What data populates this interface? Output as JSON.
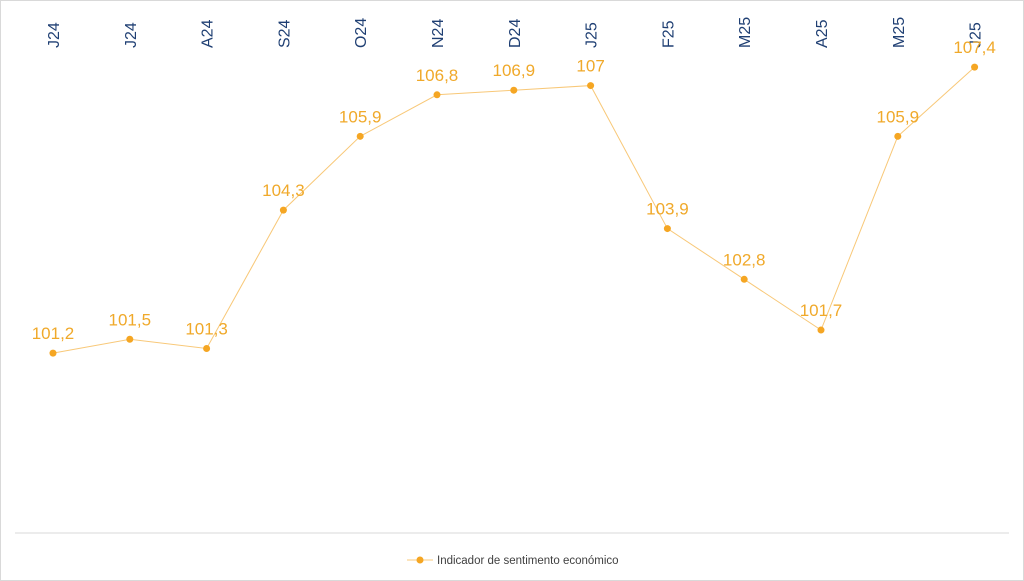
{
  "chart_data": {
    "type": "line",
    "categories": [
      "J24",
      "J24",
      "A24",
      "S24",
      "O24",
      "N24",
      "D24",
      "J25",
      "F25",
      "M25",
      "A25",
      "M25",
      "J25"
    ],
    "series": [
      {
        "name": "Indicador de sentimento económico",
        "values": [
          101.2,
          101.5,
          101.3,
          104.3,
          105.9,
          106.8,
          106.9,
          107,
          103.9,
          102.8,
          101.7,
          105.9,
          107.4
        ],
        "labels": [
          "101,2",
          "101,5",
          "101,3",
          "104,3",
          "105,9",
          "106,8",
          "106,9",
          "107",
          "103,9",
          "102,8",
          "101,7",
          "105,9",
          "107,4"
        ]
      }
    ],
    "title": "",
    "xlabel": "",
    "ylabel": "",
    "ylim": [
      97.3,
      108.4
    ],
    "grid": false,
    "x_axis_position": "top",
    "x_tick_rotation": "vertical",
    "legend": "bottom"
  },
  "colors": {
    "series": "#f5a623",
    "line": "#f8c878",
    "data_label": "#f0a92a",
    "category_label": "#1f3f73",
    "legend_text": "#404040",
    "baseline": "#d9d9d9"
  }
}
